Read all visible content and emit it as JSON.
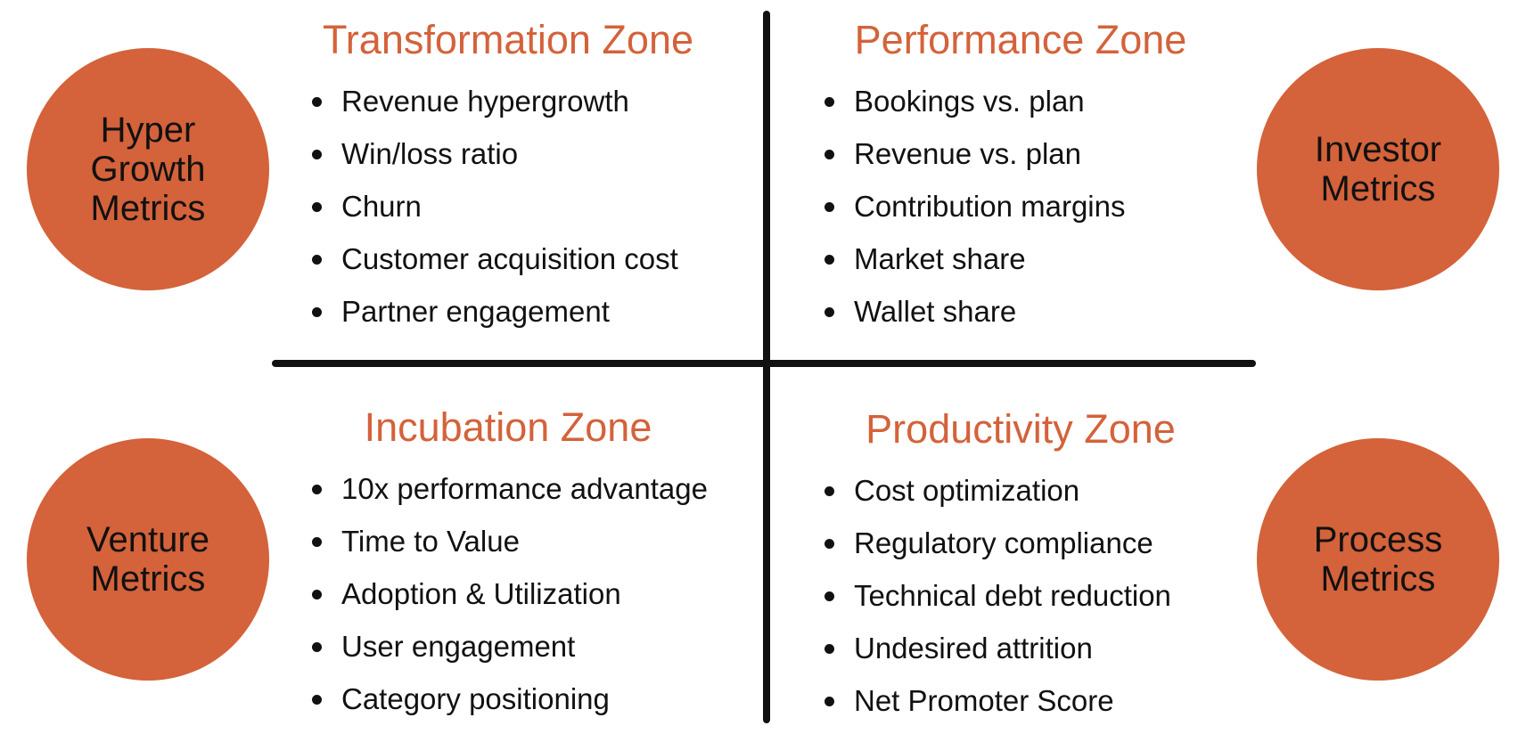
{
  "colors": {
    "accent": "#D4623A",
    "text": "#111111",
    "line": "#111111"
  },
  "circles": [
    {
      "label_lines": [
        "Hyper",
        "Growth",
        "Metrics"
      ]
    },
    {
      "label_lines": [
        "Investor",
        "Metrics"
      ]
    },
    {
      "label_lines": [
        "Venture",
        "Metrics"
      ]
    },
    {
      "label_lines": [
        "Process",
        "Metrics"
      ]
    }
  ],
  "zones": [
    {
      "title": "Transformation Zone",
      "items": [
        "Revenue hypergrowth",
        "Win/loss ratio",
        "Churn",
        "Customer acquisition cost",
        "Partner engagement"
      ]
    },
    {
      "title": "Performance Zone",
      "items": [
        "Bookings vs. plan",
        "Revenue vs. plan",
        "Contribution margins",
        "Market share",
        "Wallet share"
      ]
    },
    {
      "title": "Incubation Zone",
      "items": [
        "10x performance advantage",
        "Time to Value",
        "Adoption & Utilization",
        "User engagement",
        "Category positioning"
      ]
    },
    {
      "title": "Productivity Zone",
      "items": [
        "Cost optimization",
        "Regulatory compliance",
        "Technical debt reduction",
        "Undesired attrition",
        "Net Promoter Score"
      ]
    }
  ]
}
